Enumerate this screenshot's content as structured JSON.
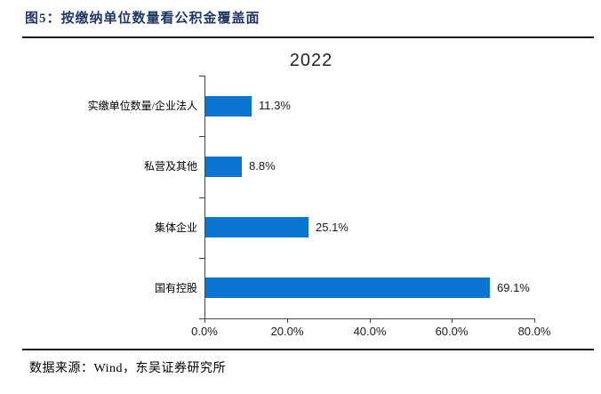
{
  "figure": {
    "caption": "图5：按缴纳单位数量看公积金覆盖面",
    "source": "数据来源：Wind，东吴证券研究所"
  },
  "chart_data": {
    "type": "bar",
    "orientation": "horizontal",
    "title": "2022",
    "categories_top_to_bottom": [
      "实缴单位数量/企业法人",
      "私营及其他",
      "集体企业",
      "国有控股"
    ],
    "values": [
      11.3,
      8.8,
      25.1,
      69.1
    ],
    "value_labels": [
      "11.3%",
      "8.8%",
      "25.1%",
      "69.1%"
    ],
    "xlim": [
      0,
      80
    ],
    "x_tick_labels": [
      "0.0%",
      "20.0%",
      "40.0%",
      "60.0%",
      "80.0%"
    ],
    "grid": false,
    "legend": "none",
    "data_labels": "outside-end"
  },
  "colors": {
    "bar": "#0b76d2",
    "caption_text": "#1f3864",
    "rule": "#1a1a1a",
    "axis": "#444444",
    "label_text": "#000000"
  }
}
